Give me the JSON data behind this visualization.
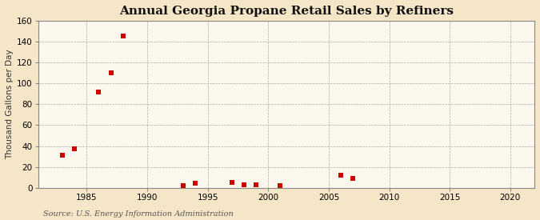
{
  "title": "Annual Georgia Propane Retail Sales by Refiners",
  "ylabel": "Thousand Gallons per Day",
  "source": "Source: U.S. Energy Information Administration",
  "fig_bg_color": "#f5e6c8",
  "plot_bg_color": "#fdf8ee",
  "scatter_color": "#cc0000",
  "xlim": [
    1981,
    2022
  ],
  "ylim": [
    0,
    160
  ],
  "xticks": [
    1985,
    1990,
    1995,
    2000,
    2005,
    2010,
    2015,
    2020
  ],
  "yticks": [
    0,
    20,
    40,
    60,
    80,
    100,
    120,
    140,
    160
  ],
  "data_x": [
    1983,
    1984,
    1986,
    1987,
    1988,
    1993,
    1994,
    1997,
    1998,
    1999,
    2001,
    2006,
    2007
  ],
  "data_y": [
    31,
    37,
    92,
    110,
    146,
    2,
    4,
    5,
    3,
    3,
    2,
    12,
    9
  ],
  "marker_size": 18,
  "marker_style": "s",
  "title_fontsize": 11,
  "label_fontsize": 7.5,
  "tick_fontsize": 7.5,
  "source_fontsize": 7,
  "grid_color": "#aaaaaa",
  "grid_linestyle": "--",
  "grid_linewidth": 0.5
}
